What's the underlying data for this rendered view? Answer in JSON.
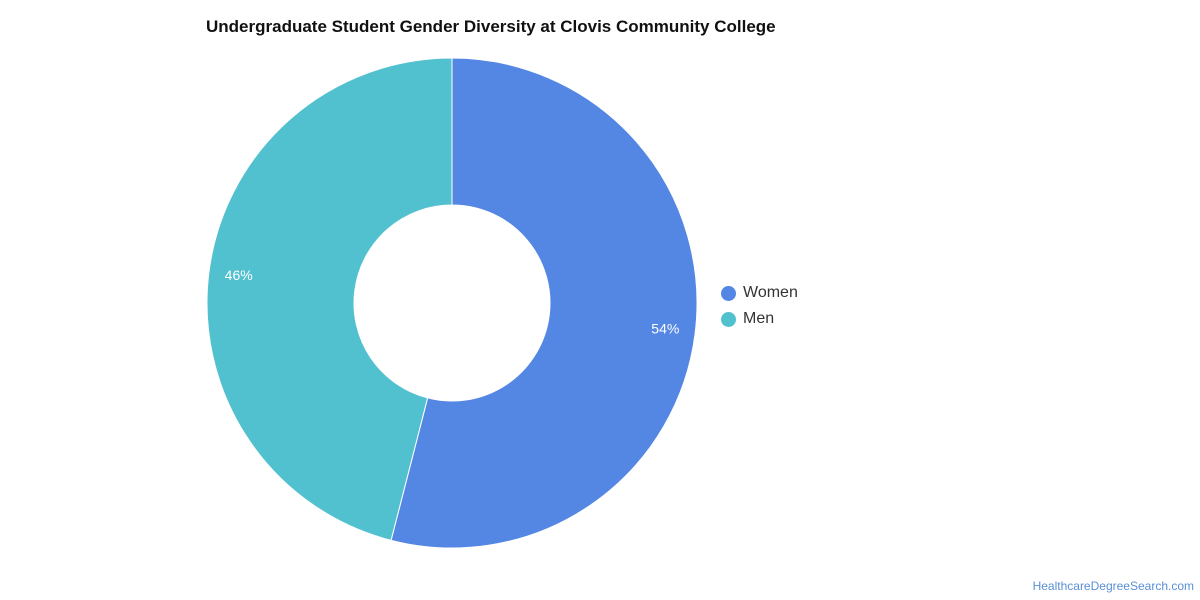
{
  "chart_data": {
    "type": "pie",
    "title": "Undergraduate Student Gender Diversity at Clovis Community College",
    "categories": [
      "Women",
      "Men"
    ],
    "values": [
      54,
      46
    ],
    "labels": [
      "54%",
      "46%"
    ],
    "colors": [
      "#5486e3",
      "#52c1cf"
    ],
    "donut": true,
    "legend_position": "right"
  },
  "source_text": "HealthcareDegreeSearch.com"
}
